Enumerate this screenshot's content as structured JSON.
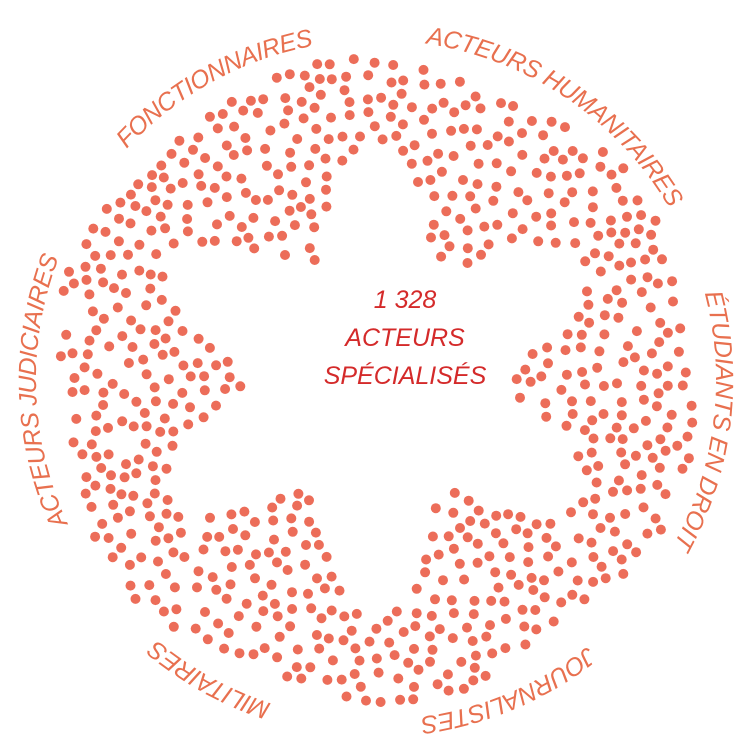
{
  "center": {
    "lines": [
      "1 328",
      "ACTEURS",
      "SPÉCIALISÉS"
    ]
  },
  "labels": [
    "FONCTIONNAIRES",
    "ACTEURS HUMANITAIRES",
    "ÉTUDIANTS EN DROIT",
    "JOURNALISTES",
    "MILITAIRES",
    "ACTEURS JUDICIAIRES"
  ]
}
